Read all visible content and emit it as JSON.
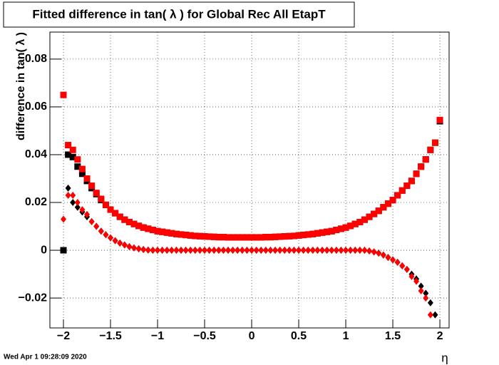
{
  "chart_data": {
    "type": "scatter",
    "title": "Fitted difference in tan( λ ) for Global Rec All EtapT",
    "y_label": "difference in tan( λ )",
    "x_label": "η",
    "timestamp": "Wed Apr  1 09:28:09 2020",
    "grid": true,
    "xlim": [
      -2.144,
      2.098
    ],
    "ylim": [
      -0.0325,
      0.0913
    ],
    "xticks": [
      {
        "value": -2,
        "label": "−2"
      },
      {
        "value": -1.5,
        "label": "−1.5"
      },
      {
        "value": -1,
        "label": "−1"
      },
      {
        "value": -0.5,
        "label": "−0.5"
      },
      0,
      0.5,
      1,
      1.5,
      2
    ],
    "yticks": [
      {
        "value": -0.02,
        "label": "−0.02"
      },
      0,
      0.02,
      0.04,
      0.06,
      0.08
    ],
    "x": [
      -2,
      -1.95,
      -1.9,
      -1.85,
      -1.8,
      -1.75,
      -1.7,
      -1.65,
      -1.6,
      -1.55,
      -1.5,
      -1.45,
      -1.4,
      -1.35,
      -1.3,
      -1.25,
      -1.2,
      -1.15,
      -1.1,
      -1.05,
      -1,
      -0.95,
      -0.9,
      -0.85,
      -0.8,
      -0.75,
      -0.7,
      -0.65,
      -0.6,
      -0.55,
      -0.5,
      -0.45,
      -0.4,
      -0.35,
      -0.3,
      -0.25,
      -0.2,
      -0.15,
      -0.1,
      -0.05,
      0,
      0.05,
      0.1,
      0.15,
      0.2,
      0.25,
      0.3,
      0.35,
      0.4,
      0.45,
      0.5,
      0.55,
      0.6,
      0.65,
      0.7,
      0.75,
      0.8,
      0.85,
      0.9,
      0.95,
      1,
      1.05,
      1.1,
      1.15,
      1.2,
      1.25,
      1.3,
      1.35,
      1.4,
      1.45,
      1.5,
      1.55,
      1.6,
      1.65,
      1.7,
      1.75,
      1.8,
      1.85,
      1.9,
      1.95,
      2
    ],
    "series": [
      {
        "color": "#000000",
        "marker": "square",
        "values": [
          0,
          0.04,
          0.039,
          0.035,
          0.032,
          0.029,
          0.026,
          0.0235,
          0.021,
          0.019,
          0.017,
          0.0155,
          0.014,
          0.0128,
          0.0118,
          0.011,
          0.0102,
          0.0095,
          0.009,
          0.0085,
          0.008,
          0.0077,
          0.0074,
          0.0071,
          0.0068,
          0.0066,
          0.0064,
          0.0062,
          0.006,
          0.0059,
          0.0058,
          0.0057,
          0.0056,
          0.0055,
          0.0055,
          0.0054,
          0.0054,
          0.0054,
          0.0054,
          0.0054,
          0.0054,
          0.0054,
          0.0054,
          0.0055,
          0.0055,
          0.0056,
          0.0057,
          0.0058,
          0.0059,
          0.006,
          0.0062,
          0.0064,
          0.0066,
          0.0068,
          0.0071,
          0.0074,
          0.0077,
          0.008,
          0.0085,
          0.009,
          0.0095,
          0.0102,
          0.011,
          0.0118,
          0.0128,
          0.014,
          0.0152,
          0.0165,
          0.018,
          0.0195,
          0.021,
          0.023,
          0.025,
          0.027,
          0.029,
          0.032,
          0.035,
          0.038,
          0.042,
          0.045,
          0.054
        ]
      },
      {
        "color": "#000000",
        "marker": "diamond",
        "values": [
          null,
          0.026,
          0.02,
          0.018,
          0.016,
          0.014,
          0.012,
          0.01,
          0.008,
          0.0065,
          0.0052,
          0.004,
          0.003,
          0.0022,
          0.0015,
          0.001,
          0.0006,
          0.0003,
          0.0001,
          0,
          0,
          0,
          0,
          0,
          0,
          0,
          0,
          0,
          0,
          0,
          0,
          0,
          0,
          0,
          0,
          0,
          0,
          0,
          0,
          0,
          0,
          0,
          0,
          0,
          0,
          0,
          0,
          0,
          0,
          0,
          0,
          0,
          0,
          0,
          0,
          0,
          0,
          0,
          0,
          0,
          0,
          0,
          0,
          0,
          0,
          -0.0003,
          -0.0007,
          -0.0012,
          -0.002,
          -0.003,
          -0.004,
          -0.005,
          -0.0065,
          -0.008,
          -0.01,
          -0.012,
          -0.015,
          -0.018,
          -0.022,
          -0.027,
          null
        ]
      },
      {
        "color": "#ff0000",
        "marker": "square",
        "values": [
          0.065,
          0.044,
          0.042,
          0.038,
          0.034,
          0.03,
          0.027,
          0.024,
          0.0215,
          0.019,
          0.017,
          0.0155,
          0.014,
          0.0128,
          0.0118,
          0.011,
          0.0102,
          0.0095,
          0.009,
          0.0085,
          0.008,
          0.0077,
          0.0074,
          0.0071,
          0.0068,
          0.0066,
          0.0064,
          0.0062,
          0.006,
          0.0059,
          0.0058,
          0.0057,
          0.0056,
          0.0055,
          0.0055,
          0.0054,
          0.0054,
          0.0054,
          0.0054,
          0.0054,
          0.0054,
          0.0054,
          0.0054,
          0.0055,
          0.0055,
          0.0056,
          0.0057,
          0.0058,
          0.0059,
          0.006,
          0.0062,
          0.0064,
          0.0066,
          0.0068,
          0.0071,
          0.0074,
          0.0077,
          0.008,
          0.0085,
          0.009,
          0.0095,
          0.0102,
          0.011,
          0.0118,
          0.0128,
          0.014,
          0.0152,
          0.0165,
          0.018,
          0.0195,
          0.021,
          0.023,
          0.025,
          0.027,
          0.029,
          0.032,
          0.035,
          0.038,
          0.042,
          0.045,
          0.0545
        ]
      },
      {
        "color": "#ff0000",
        "marker": "diamond",
        "values": [
          0.013,
          0.023,
          0.023,
          0.02,
          0.017,
          0.015,
          0.012,
          0.01,
          0.008,
          0.0065,
          0.0052,
          0.004,
          0.003,
          0.0022,
          0.0015,
          0.001,
          0.0006,
          0.0003,
          0.0001,
          0,
          0,
          0,
          0,
          0,
          0,
          0,
          0,
          0,
          0,
          0,
          0,
          0,
          0,
          0,
          0,
          0,
          0,
          0,
          0,
          0,
          0,
          0,
          0,
          0,
          0,
          0,
          0,
          0,
          0,
          0,
          0,
          0,
          0,
          0,
          0,
          0,
          0,
          0,
          0,
          0,
          0,
          0,
          0,
          0,
          0,
          -0.0003,
          -0.0007,
          -0.0012,
          -0.002,
          -0.003,
          -0.004,
          -0.005,
          -0.0065,
          -0.008,
          -0.011,
          -0.013,
          -0.017,
          -0.02,
          -0.027,
          null,
          null
        ]
      }
    ]
  }
}
